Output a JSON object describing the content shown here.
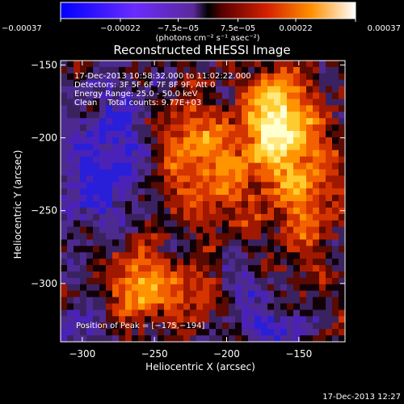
{
  "chart_data": {
    "type": "heatmap",
    "title": "Reconstructed RHESSI Image",
    "xlabel": "Heliocentric X (arcsec)",
    "ylabel": "Heliocentric Y (arcsec)",
    "xlim": [
      -315,
      -118
    ],
    "ylim": [
      -340,
      -147
    ],
    "x_ticks": [
      -300,
      -250,
      -200,
      -150
    ],
    "x_tick_labels": [
      "−300",
      "−250",
      "−200",
      "−150"
    ],
    "y_ticks": [
      -150,
      -200,
      -250,
      -300
    ],
    "y_tick_labels": [
      "−150",
      "−200",
      "−250",
      "−300"
    ],
    "colorbar": {
      "range": [
        -0.00037,
        0.00037
      ],
      "ticks": [
        -0.00037,
        -0.00022,
        -7.5e-05,
        7.5e-05,
        0.00022,
        0.00037
      ],
      "tick_labels": [
        "−0.00037",
        "−0.00022",
        "−7.5e−05",
        "7.5e−05",
        "0.00022",
        "0.00037"
      ],
      "unit_label": "(photons cm⁻² s⁻¹ asec⁻²)"
    },
    "annotations": {
      "time": "17-Dec-2013 10:58:32.000 to 11:02:22.000",
      "detectors": "Detectors: 3F 5F 6F 7F 8F 9F, Att 0",
      "energy": "Energy Range: 25.0 - 50.0 keV",
      "clean": "Clean    Total counts: 9.77E+03",
      "peak": "Position of Peak = [−175,−194]"
    },
    "peak": [
      -175,
      -194
    ],
    "grid": false
  },
  "footer": {
    "timestamp": "17-Dec-2013 12:27"
  }
}
